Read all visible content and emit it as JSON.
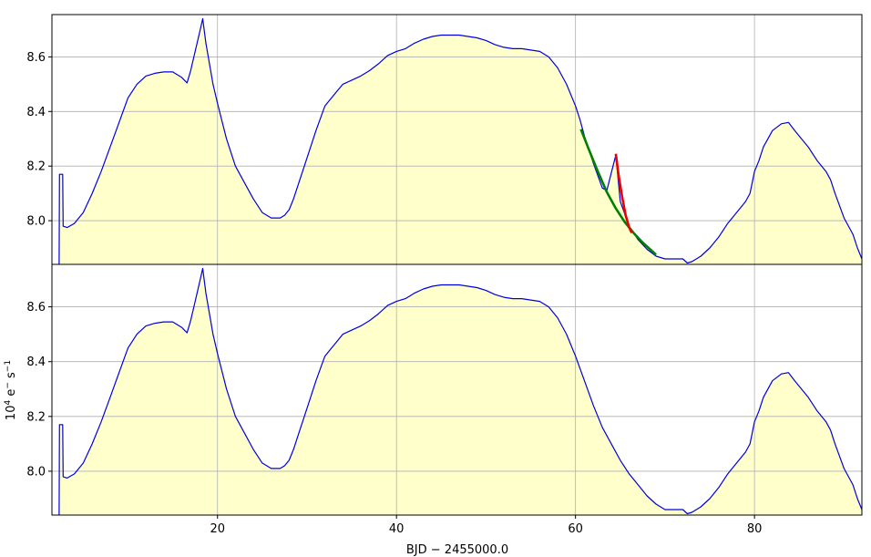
{
  "chart_data": {
    "type": "area",
    "xlabel": "BJD − 2455000.0",
    "ylabel_base": "10",
    "ylabel_exp": "4",
    "ylabel_unit": " e",
    "ylabel_unit_sup": "−",
    "ylabel_unit2": " s",
    "ylabel_unit2_sup": "−1",
    "xlim": [
      1.5,
      92
    ],
    "ylim": [
      7.84,
      8.755
    ],
    "xticks": [
      20,
      40,
      60,
      80
    ],
    "yticks": [
      8.0,
      8.2,
      8.4,
      8.6
    ],
    "grid": true,
    "colors": {
      "fill": "#ffffcc",
      "line": "#0000dd",
      "green": "#008000",
      "red": "#ee0000"
    },
    "panels": [
      {
        "series": [
          {
            "kind": "filled-line",
            "points": [
              [
                2.3,
                7.84
              ],
              [
                2.35,
                8.17
              ],
              [
                2.7,
                8.17
              ],
              [
                2.75,
                7.98
              ],
              [
                3.2,
                7.975
              ],
              [
                4,
                7.99
              ],
              [
                5,
                8.03
              ],
              [
                6,
                8.1
              ],
              [
                7,
                8.18
              ],
              [
                8,
                8.27
              ],
              [
                9,
                8.36
              ],
              [
                10,
                8.45
              ],
              [
                11,
                8.5
              ],
              [
                12,
                8.53
              ],
              [
                13,
                8.54
              ],
              [
                14,
                8.545
              ],
              [
                15,
                8.545
              ],
              [
                16,
                8.525
              ],
              [
                16.6,
                8.505
              ],
              [
                17,
                8.55
              ],
              [
                17.5,
                8.62
              ],
              [
                18,
                8.69
              ],
              [
                18.35,
                8.74
              ],
              [
                18.7,
                8.65
              ],
              [
                19.5,
                8.5
              ],
              [
                20,
                8.43
              ],
              [
                21,
                8.3
              ],
              [
                22,
                8.2
              ],
              [
                23,
                8.14
              ],
              [
                24,
                8.08
              ],
              [
                25,
                8.03
              ],
              [
                26,
                8.01
              ],
              [
                27,
                8.01
              ],
              [
                27.5,
                8.02
              ],
              [
                28,
                8.04
              ],
              [
                28.5,
                8.08
              ],
              [
                29,
                8.13
              ],
              [
                30,
                8.23
              ],
              [
                31,
                8.33
              ],
              [
                32,
                8.42
              ],
              [
                33,
                8.46
              ],
              [
                34,
                8.5
              ],
              [
                35,
                8.515
              ],
              [
                36,
                8.53
              ],
              [
                37,
                8.55
              ],
              [
                38,
                8.575
              ],
              [
                39,
                8.605
              ],
              [
                40,
                8.62
              ],
              [
                41,
                8.63
              ],
              [
                42,
                8.65
              ],
              [
                43,
                8.665
              ],
              [
                44,
                8.675
              ],
              [
                45,
                8.68
              ],
              [
                46,
                8.68
              ],
              [
                47,
                8.68
              ],
              [
                48,
                8.675
              ],
              [
                49,
                8.67
              ],
              [
                50,
                8.66
              ],
              [
                51,
                8.645
              ],
              [
                52,
                8.635
              ],
              [
                53,
                8.63
              ],
              [
                54,
                8.63
              ],
              [
                55,
                8.625
              ],
              [
                56,
                8.62
              ],
              [
                57,
                8.6
              ],
              [
                58,
                8.56
              ],
              [
                59,
                8.5
              ],
              [
                60,
                8.42
              ],
              [
                60.5,
                8.37
              ],
              [
                61,
                8.31
              ],
              [
                62,
                8.21
              ],
              [
                63,
                8.12
              ],
              [
                63.5,
                8.11
              ],
              [
                64.5,
                8.24
              ],
              [
                65,
                8.07
              ],
              [
                66,
                7.98
              ],
              [
                67,
                7.93
              ],
              [
                68,
                7.895
              ],
              [
                69,
                7.87
              ],
              [
                70,
                7.86
              ],
              [
                71,
                7.86
              ],
              [
                72,
                7.86
              ],
              [
                72.5,
                7.845
              ],
              [
                73,
                7.85
              ],
              [
                74,
                7.87
              ],
              [
                75,
                7.9
              ],
              [
                76,
                7.94
              ],
              [
                77,
                7.99
              ],
              [
                78,
                8.03
              ],
              [
                79,
                8.07
              ],
              [
                79.5,
                8.1
              ],
              [
                80,
                8.18
              ],
              [
                80.5,
                8.22
              ],
              [
                81,
                8.27
              ],
              [
                82,
                8.33
              ],
              [
                83,
                8.355
              ],
              [
                83.8,
                8.36
              ],
              [
                84.5,
                8.33
              ],
              [
                85,
                8.31
              ],
              [
                86,
                8.27
              ],
              [
                87,
                8.22
              ],
              [
                88,
                8.18
              ],
              [
                88.5,
                8.15
              ],
              [
                89,
                8.1
              ],
              [
                90,
                8.01
              ],
              [
                91,
                7.95
              ],
              [
                91.5,
                7.9
              ],
              [
                92,
                7.86
              ]
            ]
          },
          {
            "kind": "line",
            "color_key": "green",
            "points": [
              [
                60.6,
                8.335
              ],
              [
                61.5,
                8.26
              ],
              [
                62.5,
                8.18
              ],
              [
                63.5,
                8.105
              ],
              [
                64.5,
                8.045
              ],
              [
                65.5,
                7.995
              ],
              [
                66.5,
                7.955
              ],
              [
                67.5,
                7.92
              ],
              [
                68.5,
                7.89
              ],
              [
                69,
                7.875
              ]
            ]
          },
          {
            "kind": "line",
            "color_key": "red",
            "points": [
              [
                64.5,
                8.245
              ],
              [
                64.8,
                8.17
              ],
              [
                65.2,
                8.09
              ],
              [
                65.6,
                8.02
              ],
              [
                66,
                7.975
              ],
              [
                66.3,
                7.955
              ]
            ]
          }
        ]
      },
      {
        "series": [
          {
            "kind": "filled-line",
            "points": [
              [
                2.3,
                7.84
              ],
              [
                2.35,
                8.17
              ],
              [
                2.7,
                8.17
              ],
              [
                2.75,
                7.98
              ],
              [
                3.2,
                7.975
              ],
              [
                4,
                7.99
              ],
              [
                5,
                8.03
              ],
              [
                6,
                8.1
              ],
              [
                7,
                8.18
              ],
              [
                8,
                8.27
              ],
              [
                9,
                8.36
              ],
              [
                10,
                8.45
              ],
              [
                11,
                8.5
              ],
              [
                12,
                8.53
              ],
              [
                13,
                8.54
              ],
              [
                14,
                8.545
              ],
              [
                15,
                8.545
              ],
              [
                16,
                8.525
              ],
              [
                16.6,
                8.505
              ],
              [
                17,
                8.55
              ],
              [
                17.5,
                8.62
              ],
              [
                18,
                8.69
              ],
              [
                18.35,
                8.74
              ],
              [
                18.7,
                8.65
              ],
              [
                19.5,
                8.5
              ],
              [
                20,
                8.43
              ],
              [
                21,
                8.3
              ],
              [
                22,
                8.2
              ],
              [
                23,
                8.14
              ],
              [
                24,
                8.08
              ],
              [
                25,
                8.03
              ],
              [
                26,
                8.01
              ],
              [
                27,
                8.01
              ],
              [
                27.5,
                8.02
              ],
              [
                28,
                8.04
              ],
              [
                28.5,
                8.08
              ],
              [
                29,
                8.13
              ],
              [
                30,
                8.23
              ],
              [
                31,
                8.33
              ],
              [
                32,
                8.42
              ],
              [
                33,
                8.46
              ],
              [
                34,
                8.5
              ],
              [
                35,
                8.515
              ],
              [
                36,
                8.53
              ],
              [
                37,
                8.55
              ],
              [
                38,
                8.575
              ],
              [
                39,
                8.605
              ],
              [
                40,
                8.62
              ],
              [
                41,
                8.63
              ],
              [
                42,
                8.65
              ],
              [
                43,
                8.665
              ],
              [
                44,
                8.675
              ],
              [
                45,
                8.68
              ],
              [
                46,
                8.68
              ],
              [
                47,
                8.68
              ],
              [
                48,
                8.675
              ],
              [
                49,
                8.67
              ],
              [
                50,
                8.66
              ],
              [
                51,
                8.645
              ],
              [
                52,
                8.635
              ],
              [
                53,
                8.63
              ],
              [
                54,
                8.63
              ],
              [
                55,
                8.625
              ],
              [
                56,
                8.62
              ],
              [
                57,
                8.6
              ],
              [
                58,
                8.56
              ],
              [
                59,
                8.5
              ],
              [
                60,
                8.42
              ],
              [
                61,
                8.33
              ],
              [
                62,
                8.24
              ],
              [
                63,
                8.16
              ],
              [
                64,
                8.1
              ],
              [
                65,
                8.04
              ],
              [
                66,
                7.99
              ],
              [
                67,
                7.95
              ],
              [
                68,
                7.91
              ],
              [
                69,
                7.88
              ],
              [
                70,
                7.86
              ],
              [
                71,
                7.86
              ],
              [
                72,
                7.86
              ],
              [
                72.5,
                7.845
              ],
              [
                73,
                7.85
              ],
              [
                74,
                7.87
              ],
              [
                75,
                7.9
              ],
              [
                76,
                7.94
              ],
              [
                77,
                7.99
              ],
              [
                78,
                8.03
              ],
              [
                79,
                8.07
              ],
              [
                79.5,
                8.1
              ],
              [
                80,
                8.18
              ],
              [
                80.5,
                8.22
              ],
              [
                81,
                8.27
              ],
              [
                82,
                8.33
              ],
              [
                83,
                8.355
              ],
              [
                83.8,
                8.36
              ],
              [
                84.5,
                8.33
              ],
              [
                85,
                8.31
              ],
              [
                86,
                8.27
              ],
              [
                87,
                8.22
              ],
              [
                88,
                8.18
              ],
              [
                88.5,
                8.15
              ],
              [
                89,
                8.1
              ],
              [
                90,
                8.01
              ],
              [
                91,
                7.95
              ],
              [
                91.5,
                7.9
              ],
              [
                92,
                7.86
              ]
            ]
          }
        ]
      }
    ]
  }
}
